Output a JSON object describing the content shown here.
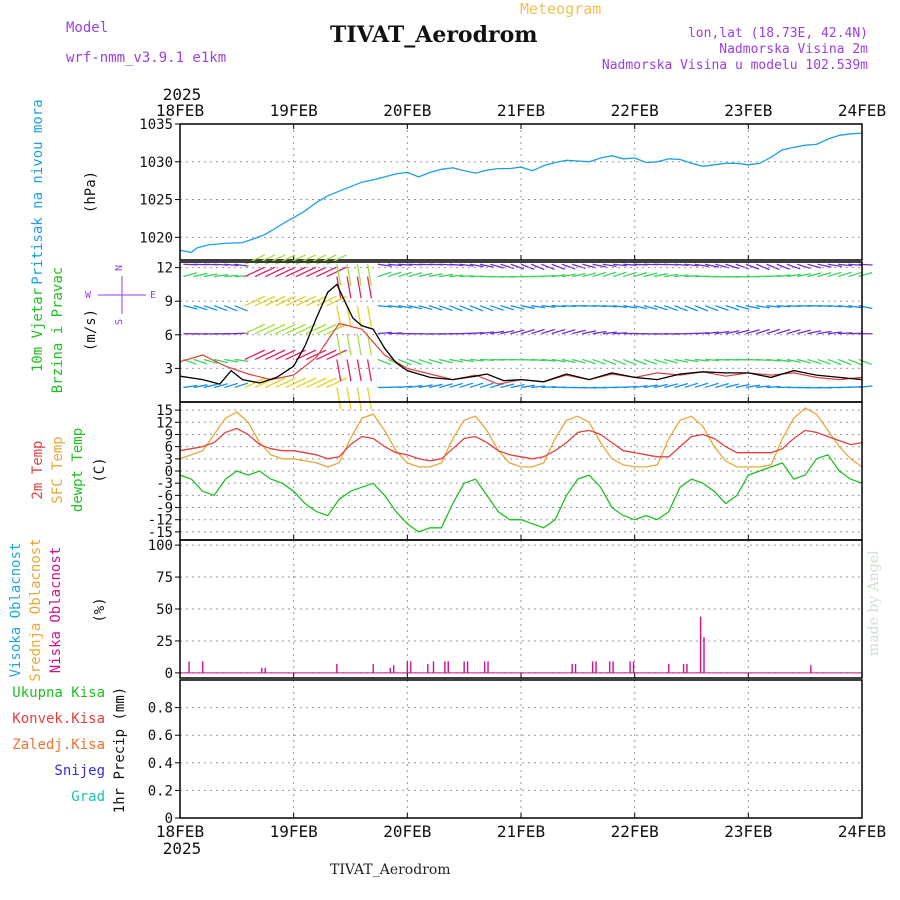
{
  "header": {
    "title": "TIVAT_Aerodrom",
    "subtitle": "Meteogram",
    "model_label": "Model",
    "model_name": "wrf-nmm_v3.9.1  e1km",
    "lonlat": "lon,lat (18.73E, 42.4N)",
    "altitude": "Nadmorska Visina 2m",
    "model_altitude": "Nadmorska Visina u modelu 102.539m",
    "footer": "TIVAT_Aerodrom",
    "credit": "made by Angel"
  },
  "colors": {
    "pressure": "#1ea0e6",
    "temp_2m": "#e04040",
    "sfc_temp": "#e8a838",
    "dewpoint": "#20c020",
    "cloud_high": "#20a8e0",
    "cloud_mid": "#e8a838",
    "cloud_low": "#d0108c",
    "wind_speed": "#000000",
    "gust": "#e04040",
    "precip_total": "#20c020",
    "precip_conv": "#e04040",
    "precip_frozen": "#f07030",
    "snow": "#3030e0",
    "grad": "#20c0b0",
    "axis_label": "#111111"
  },
  "chart_data": [
    {
      "id": "pressure",
      "type": "line",
      "year": "2025",
      "x_ticks": [
        "18FEB",
        "19FEB",
        "20FEB",
        "21FEB",
        "22FEB",
        "23FEB",
        "24FEB"
      ],
      "ylabel_lines": [
        "Pritisak na nivou mora"
      ],
      "unit": "(hPa)",
      "ylim": [
        1017,
        1035
      ],
      "yticks": [
        1020,
        1025,
        1030,
        1035
      ],
      "grid": true,
      "series": [
        {
          "name": "Pritisak na nivou mora",
          "x": [
            0,
            0.1,
            0.15,
            0.25,
            0.4,
            0.55,
            0.65,
            0.75,
            0.85,
            0.95,
            1.0,
            1.1,
            1.2,
            1.3,
            1.4,
            1.5,
            1.6,
            1.7,
            1.8,
            1.9,
            2.0,
            2.1,
            2.2,
            2.3,
            2.4,
            2.5,
            2.6,
            2.7,
            2.8,
            2.9,
            3.0,
            3.1,
            3.2,
            3.3,
            3.4,
            3.5,
            3.6,
            3.7,
            3.8,
            3.9,
            4.0,
            4.1,
            4.2,
            4.3,
            4.4,
            4.5,
            4.6,
            4.7,
            4.8,
            4.9,
            5.0,
            5.1,
            5.2,
            5.3,
            5.4,
            5.5,
            5.6,
            5.7,
            5.8,
            5.9,
            6.0
          ],
          "values": [
            1018.3,
            1018.0,
            1018.6,
            1019.0,
            1019.2,
            1019.3,
            1019.8,
            1020.4,
            1021.3,
            1022.2,
            1022.6,
            1023.5,
            1024.6,
            1025.5,
            1026.1,
            1026.7,
            1027.3,
            1027.6,
            1028.0,
            1028.4,
            1028.6,
            1028.0,
            1028.6,
            1029.0,
            1029.2,
            1028.8,
            1028.5,
            1028.9,
            1029.1,
            1029.1,
            1029.3,
            1028.8,
            1029.5,
            1029.9,
            1030.2,
            1030.1,
            1030.0,
            1030.5,
            1030.8,
            1030.4,
            1030.5,
            1029.9,
            1030.0,
            1030.4,
            1030.3,
            1029.8,
            1029.4,
            1029.6,
            1029.8,
            1029.8,
            1029.6,
            1029.8,
            1030.6,
            1031.6,
            1031.9,
            1032.2,
            1032.3,
            1033.0,
            1033.5,
            1033.7,
            1033.8
          ]
        }
      ]
    },
    {
      "id": "wind",
      "type": "line",
      "ylabel_lines": [
        "10m Vjetar",
        "Brzina i Pravac"
      ],
      "unit": "(m/s)",
      "compass": [
        "W",
        "E",
        "N",
        "S"
      ],
      "ylim": [
        0,
        12.5
      ],
      "yticks": [
        3,
        6,
        9,
        12
      ],
      "grid": true,
      "series": [
        {
          "name": "Brzina",
          "x": [
            0,
            0.2,
            0.35,
            0.45,
            0.55,
            0.7,
            0.85,
            1.0,
            1.1,
            1.2,
            1.3,
            1.38,
            1.45,
            1.52,
            1.6,
            1.7,
            1.8,
            1.9,
            2.0,
            2.2,
            2.4,
            2.6,
            2.7,
            2.85,
            3.0,
            3.2,
            3.4,
            3.6,
            3.8,
            4.0,
            4.2,
            4.4,
            4.6,
            4.8,
            5.0,
            5.2,
            5.4,
            5.5,
            5.6,
            5.8,
            6.0
          ],
          "values": [
            2.3,
            2.0,
            1.6,
            2.8,
            2.0,
            1.7,
            2.2,
            3.2,
            5.0,
            7.5,
            9.8,
            10.5,
            9.0,
            7.5,
            6.8,
            6.5,
            4.8,
            3.5,
            2.8,
            2.2,
            2.0,
            2.3,
            2.5,
            1.9,
            2.0,
            1.8,
            2.5,
            2.0,
            2.6,
            2.2,
            2.0,
            2.5,
            2.7,
            2.6,
            2.6,
            2.2,
            2.8,
            2.6,
            2.4,
            2.2,
            2.0
          ]
        },
        {
          "name": "Udari",
          "x": [
            0,
            0.2,
            0.4,
            0.6,
            0.8,
            1.0,
            1.2,
            1.4,
            1.6,
            1.8,
            2.0,
            2.2,
            2.4,
            2.6,
            2.8,
            3.0,
            3.2,
            3.4,
            3.6,
            3.8,
            4.0,
            4.2,
            4.4,
            4.6,
            4.8,
            5.0,
            5.2,
            5.4,
            5.6,
            5.8,
            6.0
          ],
          "values": [
            3.6,
            4.2,
            3.2,
            2.5,
            2.0,
            2.4,
            4.0,
            7.0,
            6.5,
            4.2,
            3.0,
            2.5,
            2.0,
            2.4,
            1.6,
            2.0,
            1.8,
            2.4,
            2.0,
            2.5,
            2.2,
            2.6,
            2.4,
            2.7,
            2.3,
            2.6,
            2.4,
            2.6,
            2.2,
            2.0,
            2.2
          ]
        }
      ]
    },
    {
      "id": "temperature",
      "type": "line",
      "ylabel_lines": [
        "2m Temp",
        "SFC Temp",
        "dewpt Temp"
      ],
      "unit": "(C)",
      "ylim": [
        -17,
        17
      ],
      "yticks": [
        -15,
        -12,
        -9,
        -6,
        -3,
        0,
        3,
        6,
        9,
        12,
        15
      ],
      "grid": true,
      "series": [
        {
          "name": "2m Temp",
          "x": [
            0,
            0.1,
            0.2,
            0.3,
            0.4,
            0.5,
            0.6,
            0.7,
            0.8,
            0.9,
            1.0,
            1.1,
            1.2,
            1.3,
            1.4,
            1.5,
            1.6,
            1.7,
            1.8,
            1.9,
            2.0,
            2.1,
            2.2,
            2.3,
            2.4,
            2.5,
            2.6,
            2.7,
            2.8,
            2.9,
            3.0,
            3.1,
            3.2,
            3.3,
            3.4,
            3.5,
            3.6,
            3.7,
            3.8,
            3.9,
            4.0,
            4.1,
            4.2,
            4.3,
            4.4,
            4.5,
            4.6,
            4.7,
            4.8,
            4.9,
            5.0,
            5.1,
            5.2,
            5.3,
            5.4,
            5.5,
            5.6,
            5.7,
            5.8,
            5.9,
            6.0
          ],
          "values": [
            5,
            5.5,
            6,
            7,
            9.5,
            10.5,
            9,
            6.5,
            5.5,
            5,
            5,
            4.5,
            4,
            3,
            3.5,
            6.5,
            8.5,
            8,
            6,
            4.5,
            4,
            3,
            2.5,
            3,
            5.5,
            8,
            8.5,
            7,
            5,
            4,
            3.5,
            3,
            3.5,
            5,
            7,
            9.5,
            10,
            9,
            7,
            5,
            4.5,
            4,
            3.5,
            3.5,
            6,
            8.5,
            9,
            8,
            6,
            4.5,
            4.5,
            4.5,
            4.5,
            5.5,
            8,
            10,
            9.5,
            8.5,
            7.5,
            6.5,
            7
          ]
        },
        {
          "name": "SFC Temp",
          "x": [
            0,
            0.1,
            0.2,
            0.3,
            0.4,
            0.5,
            0.6,
            0.7,
            0.8,
            0.9,
            1.0,
            1.1,
            1.2,
            1.3,
            1.4,
            1.5,
            1.6,
            1.7,
            1.8,
            1.9,
            2.0,
            2.1,
            2.2,
            2.3,
            2.4,
            2.5,
            2.6,
            2.7,
            2.8,
            2.9,
            3.0,
            3.1,
            3.2,
            3.3,
            3.4,
            3.5,
            3.6,
            3.7,
            3.8,
            3.9,
            4.0,
            4.1,
            4.2,
            4.3,
            4.4,
            4.5,
            4.6,
            4.7,
            4.8,
            4.9,
            5.0,
            5.1,
            5.2,
            5.3,
            5.4,
            5.5,
            5.6,
            5.7,
            5.8,
            5.9,
            6.0
          ],
          "values": [
            3,
            4,
            5,
            9,
            13,
            14.5,
            12,
            7,
            4,
            3,
            3,
            2.5,
            2,
            1,
            2,
            8,
            13,
            14,
            10,
            5,
            2,
            1,
            1,
            2,
            8,
            12.5,
            13.5,
            10,
            5,
            2,
            1,
            1,
            2,
            8,
            12.5,
            13.5,
            12,
            7,
            3,
            1.5,
            1,
            1,
            1.5,
            8,
            12.5,
            13.5,
            11,
            6,
            2.5,
            1,
            1,
            1,
            1.5,
            8,
            13,
            15.5,
            14,
            10,
            6,
            3,
            1
          ]
        },
        {
          "name": "dewpt Temp",
          "x": [
            0,
            0.1,
            0.2,
            0.3,
            0.4,
            0.5,
            0.6,
            0.7,
            0.8,
            0.9,
            1.0,
            1.1,
            1.2,
            1.3,
            1.4,
            1.5,
            1.6,
            1.7,
            1.8,
            1.9,
            2.0,
            2.1,
            2.2,
            2.3,
            2.4,
            2.5,
            2.6,
            2.7,
            2.8,
            2.9,
            3.0,
            3.1,
            3.2,
            3.3,
            3.4,
            3.5,
            3.6,
            3.7,
            3.8,
            3.9,
            4.0,
            4.1,
            4.2,
            4.3,
            4.4,
            4.5,
            4.6,
            4.7,
            4.8,
            4.9,
            5.0,
            5.1,
            5.2,
            5.3,
            5.4,
            5.5,
            5.6,
            5.7,
            5.8,
            5.9,
            6.0
          ],
          "values": [
            -1,
            -2,
            -5,
            -6,
            -2,
            0,
            -1,
            0,
            -2,
            -3,
            -5,
            -8,
            -10,
            -11,
            -7,
            -5,
            -4,
            -3,
            -6,
            -10,
            -13,
            -15,
            -14,
            -14,
            -8,
            -3,
            -2,
            -6,
            -10,
            -12,
            -12,
            -13,
            -14,
            -12,
            -6,
            -2,
            -1,
            -4,
            -9,
            -11,
            -12,
            -11,
            -12,
            -10,
            -4,
            -2,
            -3,
            -5,
            -8,
            -6,
            -1,
            0,
            1,
            2,
            -2,
            -1,
            3,
            4,
            0,
            -2,
            -3
          ]
        }
      ]
    },
    {
      "id": "clouds",
      "type": "bar",
      "ylabel_lines": [
        "Visoka Oblacnost",
        "Srednja Oblacnost",
        "Niska Oblacnost"
      ],
      "unit": "(%)",
      "ylim": [
        -4,
        104
      ],
      "yticks": [
        0,
        25,
        50,
        75,
        100
      ],
      "grid": true,
      "series": [
        {
          "name": "Niska Oblacnost",
          "x": [
            0.08,
            0.2,
            0.72,
            0.75,
            1.38,
            1.7,
            1.85,
            1.88,
            2.0,
            2.03,
            2.18,
            2.23,
            2.33,
            2.36,
            2.5,
            2.53,
            2.68,
            2.71,
            3.45,
            3.48,
            3.63,
            3.66,
            3.78,
            3.81,
            3.96,
            3.99,
            4.3,
            4.43,
            4.46,
            4.58,
            4.61,
            5.55
          ],
          "values": [
            9,
            9,
            4,
            4,
            7,
            7,
            4,
            6,
            9,
            9,
            7,
            9,
            9,
            9,
            9,
            9,
            9,
            9,
            7,
            7,
            9,
            9,
            9,
            9,
            9,
            9,
            7,
            7,
            7,
            44,
            28,
            6
          ]
        }
      ]
    },
    {
      "id": "precipitation",
      "type": "bar",
      "ylabel_lines": [
        "1hr Precip (mm)"
      ],
      "legend": [
        "Ukupna Kisa",
        "Konvek.Kisa",
        "Zaledj.Kisa",
        "Snijeg",
        "Grad"
      ],
      "x_ticks": [
        "18FEB",
        "19FEB",
        "20FEB",
        "21FEB",
        "22FEB",
        "23FEB",
        "24FEB"
      ],
      "year": "2025",
      "ylim": [
        0,
        1.0
      ],
      "yticks": [
        0,
        0.2,
        0.4,
        0.6,
        0.8
      ],
      "grid": true,
      "series": [
        {
          "name": "Ukupna Kisa",
          "x": [],
          "values": []
        }
      ]
    }
  ]
}
